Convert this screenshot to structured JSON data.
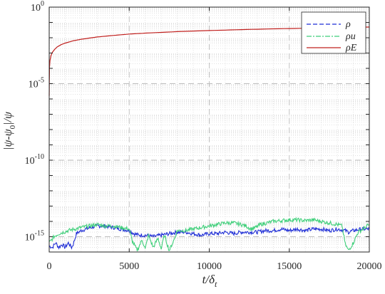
{
  "chart_data": {
    "type": "line",
    "xlabel": "t/δt",
    "xlabel_main": "t/δ",
    "xlabel_sub": "t",
    "ylabel": "|ψ-ψ0|/ψ",
    "ylabel_parts": [
      "|ψ-ψ",
      "0",
      "|/ψ"
    ],
    "y_scale": "log",
    "xlim": [
      0,
      20000
    ],
    "ylim_log10": [
      -16,
      0
    ],
    "x_ticks": [
      0,
      5000,
      10000,
      15000,
      20000
    ],
    "x_tick_labels": [
      "0",
      "5000",
      "10000",
      "15000",
      "20000"
    ],
    "y_ticks_log10": [
      -15,
      -10,
      -5,
      0
    ],
    "y_tick_labels": [
      "-15",
      "-10",
      "-5",
      "0"
    ],
    "y_tick_base": "10",
    "grid": true,
    "legend_position": "top-right",
    "series": [
      {
        "name": "ρ",
        "legend_main": "ρ",
        "color": "#1f2ed6",
        "dash": "dashed",
        "x": [
          0,
          200,
          400,
          600,
          800,
          1000,
          1200,
          1400,
          1500,
          1700,
          2000,
          2300,
          2600,
          3000,
          3500,
          4000,
          4500,
          5000,
          5300,
          5600,
          6000,
          6500,
          7000,
          7500,
          8000,
          8500,
          9000,
          9500,
          10000,
          10500,
          11000,
          11500,
          12000,
          12500,
          13000,
          13500,
          14000,
          14500,
          15000,
          15500,
          16000,
          16500,
          17000,
          17500,
          18000,
          18500,
          18700,
          19000,
          19500,
          20000
        ],
        "log10_y": [
          -15.6,
          -15.7,
          -15.4,
          -15.7,
          -15.5,
          -15.7,
          -15.4,
          -15.7,
          -15.5,
          -14.8,
          -14.6,
          -14.5,
          -14.4,
          -14.3,
          -14.3,
          -14.4,
          -14.5,
          -14.6,
          -14.8,
          -14.9,
          -14.9,
          -15.0,
          -14.9,
          -14.8,
          -14.7,
          -14.7,
          -14.8,
          -14.9,
          -14.8,
          -14.8,
          -14.7,
          -14.8,
          -14.7,
          -14.7,
          -14.7,
          -14.6,
          -14.6,
          -14.5,
          -14.6,
          -14.5,
          -14.6,
          -14.5,
          -14.5,
          -14.6,
          -14.5,
          -14.6,
          -14.7,
          -14.6,
          -14.5,
          -14.5
        ]
      },
      {
        "name": "ρu",
        "legend_main": "ρu",
        "color": "#3fcf7a",
        "dash": "dashdot",
        "x": [
          0,
          300,
          600,
          900,
          1200,
          1600,
          2000,
          2500,
          3000,
          3500,
          4000,
          4500,
          5000,
          5200,
          5500,
          5800,
          6000,
          6200,
          6500,
          6800,
          7000,
          7200,
          7500,
          7800,
          8000,
          8500,
          9000,
          9500,
          10000,
          10500,
          11000,
          11500,
          12000,
          12300,
          12600,
          12900,
          13200,
          13600,
          14000,
          14500,
          15000,
          15500,
          16000,
          16500,
          17000,
          17500,
          18000,
          18300,
          18500,
          18700,
          19000,
          19300,
          19600,
          20000
        ],
        "log10_y": [
          -15.4,
          -15.0,
          -14.8,
          -14.7,
          -14.6,
          -14.5,
          -14.4,
          -14.3,
          -14.2,
          -14.3,
          -14.3,
          -14.4,
          -14.5,
          -15.3,
          -15.9,
          -15.2,
          -15.8,
          -14.9,
          -15.7,
          -15.1,
          -15.8,
          -14.9,
          -15.9,
          -15.2,
          -14.6,
          -14.6,
          -14.5,
          -14.4,
          -14.3,
          -14.2,
          -14.1,
          -14.1,
          -14.2,
          -14.3,
          -14.5,
          -14.4,
          -14.2,
          -14.1,
          -14.0,
          -13.95,
          -13.9,
          -13.9,
          -13.95,
          -13.9,
          -14.0,
          -14.1,
          -14.2,
          -14.3,
          -15.5,
          -15.9,
          -15.4,
          -14.7,
          -14.5,
          -14.2
        ]
      },
      {
        "name": "ρE",
        "legend_main": "ρE",
        "color": "#c0201e",
        "dash": "solid",
        "x": [
          0,
          20,
          50,
          100,
          200,
          350,
          500,
          750,
          1000,
          1500,
          2000,
          3000,
          4000,
          5000,
          6000,
          8000,
          10000,
          12000,
          14000,
          16000,
          18000,
          20000
        ],
        "log10_y": [
          -5.8,
          -3.9,
          -3.5,
          -3.2,
          -2.95,
          -2.75,
          -2.6,
          -2.45,
          -2.35,
          -2.2,
          -2.1,
          -1.95,
          -1.85,
          -1.76,
          -1.7,
          -1.6,
          -1.53,
          -1.47,
          -1.42,
          -1.38,
          -1.34,
          -1.3
        ]
      }
    ]
  }
}
